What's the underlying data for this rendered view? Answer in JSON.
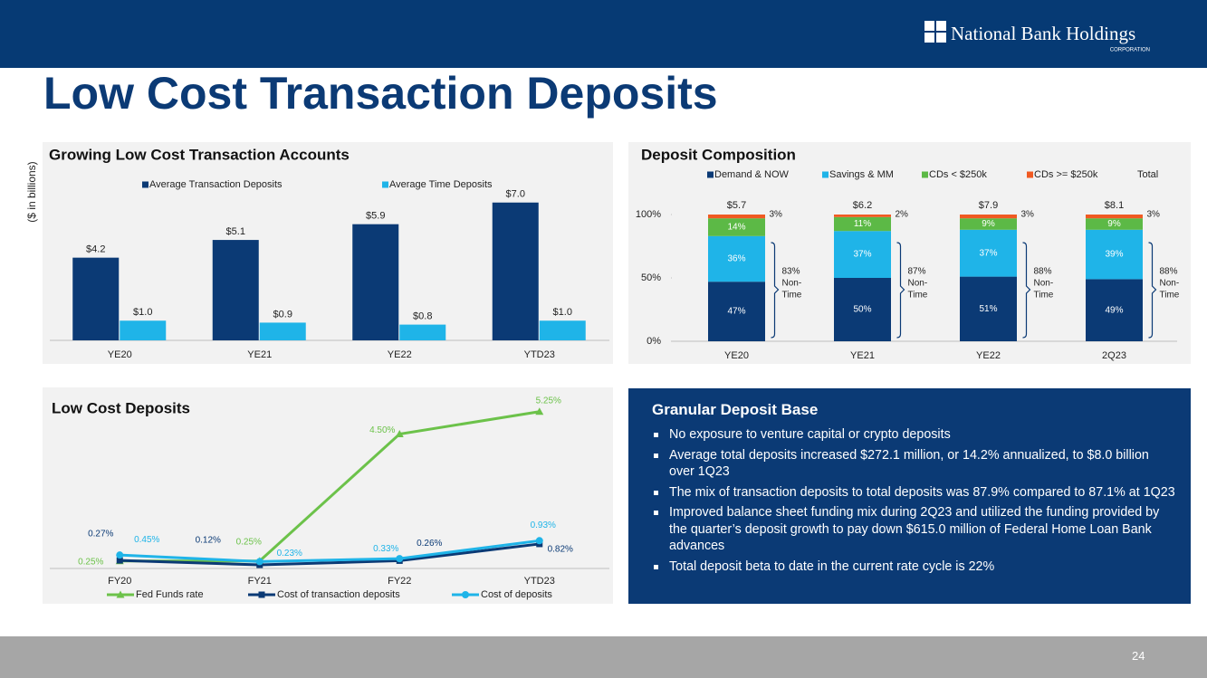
{
  "header": {
    "logo": "National Bank Holdings",
    "logo_subtitle": "CORPORATION"
  },
  "title": "Low Cost Transaction Deposits",
  "chart_data": [
    {
      "type": "bar",
      "title": "Growing Low Cost Transaction Accounts",
      "ylabel": "($ in billions)",
      "categories": [
        "YE20",
        "YE21",
        "YE22",
        "YTD23"
      ],
      "series": [
        {
          "name": "Average Transaction Deposits",
          "color": "#0b3a75",
          "values": [
            4.2,
            5.1,
            5.9,
            7.0
          ],
          "value_labels": [
            "$4.2",
            "$5.1",
            "$5.9",
            "$7.0"
          ]
        },
        {
          "name": "Average Time Deposits",
          "color": "#1fb4e8",
          "values": [
            1.0,
            0.9,
            0.8,
            1.0
          ],
          "value_labels": [
            "$1.0",
            "$0.9",
            "$0.8",
            "$1.0"
          ]
        }
      ],
      "ylim": [
        0,
        8
      ]
    },
    {
      "type": "stacked_bar",
      "title": "Deposit Composition",
      "categories": [
        "YE20",
        "YE21",
        "YE22",
        "2Q23"
      ],
      "series": [
        {
          "name": "Demand & NOW",
          "color": "#0b3a75",
          "values": [
            47,
            50,
            51,
            49
          ],
          "value_labels": [
            "47%",
            "50%",
            "51%",
            "49%"
          ]
        },
        {
          "name": "Savings & MM",
          "color": "#1fb4e8",
          "values": [
            36,
            37,
            37,
            39
          ],
          "value_labels": [
            "36%",
            "37%",
            "37%",
            "39%"
          ]
        },
        {
          "name": "CDs < $250k",
          "color": "#5cb946",
          "values": [
            14,
            11,
            9,
            9
          ],
          "value_labels": [
            "14%",
            "11%",
            "9%",
            "9%"
          ]
        },
        {
          "name": "CDs >= $250k",
          "color": "#f05a22",
          "values": [
            3,
            2,
            3,
            3
          ],
          "value_labels": [
            "3%",
            "2%",
            "3%",
            "3%"
          ]
        },
        {
          "name": "Total",
          "values": [
            5.7,
            6.2,
            7.9,
            8.1
          ],
          "value_labels": [
            "$5.7",
            "$6.2",
            "$7.9",
            "$8.1"
          ]
        }
      ],
      "ylim": [
        0,
        100
      ],
      "yticks": [
        {
          "value": 0,
          "label": "0%"
        },
        {
          "value": 50,
          "label": "50%"
        },
        {
          "value": 100,
          "label": "100%"
        }
      ],
      "annotations": [
        [
          "83%",
          "Non-",
          "Time"
        ],
        [
          "87%",
          "Non-",
          "Time"
        ],
        [
          "88%",
          "Non-",
          "Time"
        ],
        [
          "88%",
          "Non-",
          "Time"
        ]
      ]
    },
    {
      "type": "line",
      "title": "Low Cost Deposits",
      "categories": [
        "FY20",
        "FY21",
        "FY22",
        "YTD23"
      ],
      "series": [
        {
          "name": "Fed Funds rate",
          "color": "#6cc24a",
          "marker": "triangle",
          "values": [
            0.25,
            0.25,
            4.5,
            5.25
          ],
          "value_labels": [
            "0.25%",
            "0.25%",
            "4.50%",
            "5.25%"
          ]
        },
        {
          "name": "Cost of transaction deposits",
          "color": "#0b3a75",
          "marker": "square",
          "values": [
            0.27,
            0.12,
            0.26,
            0.82
          ],
          "value_labels": [
            "0.27%",
            "0.12%",
            "0.26%",
            "0.82%"
          ]
        },
        {
          "name": "Cost of deposits",
          "color": "#1fb4e8",
          "marker": "circle",
          "values": [
            0.45,
            0.23,
            0.33,
            0.93
          ],
          "value_labels": [
            "0.45%",
            "0.23%",
            "0.33%",
            "0.93%"
          ]
        }
      ],
      "ylim": [
        0,
        5.5
      ]
    }
  ],
  "panel": {
    "title": "Granular Deposit Base",
    "bullets": [
      "No exposure to venture capital or crypto deposits",
      "Average total deposits increased $272.1 million, or 14.2% annualized, to $8.0 billion over 1Q23",
      "The mix of transaction deposits to total deposits was 87.9% compared to 87.1% at 1Q23",
      "Improved balance sheet funding mix during 2Q23 and utilized the funding provided by the quarter’s deposit growth to pay down $615.0 million of Federal Home Loan Bank advances",
      "Total deposit beta to date in the current rate cycle is 22%"
    ]
  },
  "page_number": "24"
}
